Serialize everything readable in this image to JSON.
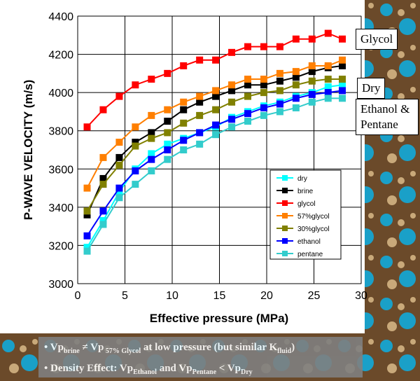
{
  "colors": {
    "bg_base": "#6b4a2a",
    "bg_speck": "#1aa0c8",
    "bg_light": "#c9a97a",
    "notes_bg": "#7f7f7f"
  },
  "chart_data": {
    "type": "line",
    "xlabel": "Effective pressure (MPa)",
    "ylabel": "P-WAVE VELOCITY (m/s)",
    "xlim": [
      0,
      30
    ],
    "ylim": [
      3000,
      4400
    ],
    "xticks": [
      "0",
      "5",
      "10",
      "15",
      "20",
      "25",
      "30"
    ],
    "yticks": [
      "3000",
      "3200",
      "3400",
      "3600",
      "3800",
      "4000",
      "4200",
      "4400"
    ],
    "grid": true,
    "legend_position": "lower-right inside plot",
    "x": [
      1,
      2.7,
      4.4,
      6.1,
      7.8,
      9.5,
      11.2,
      12.9,
      14.6,
      16.3,
      18,
      19.7,
      21.4,
      23.1,
      24.8,
      26.5,
      28
    ],
    "series": [
      {
        "name": "dry",
        "color": "#00ffff",
        "marker": "square",
        "values": [
          3190,
          3330,
          3480,
          3600,
          3680,
          3730,
          3760,
          3790,
          3820,
          3870,
          3900,
          3930,
          3950,
          3980,
          4000,
          4030,
          4040
        ]
      },
      {
        "name": "brine",
        "color": "#000000",
        "marker": "square",
        "values": [
          3360,
          3550,
          3660,
          3740,
          3790,
          3850,
          3910,
          3950,
          3980,
          4010,
          4040,
          4040,
          4060,
          4080,
          4110,
          4130,
          4140
        ]
      },
      {
        "name": "glycol",
        "color": "#ff0000",
        "marker": "square",
        "values": [
          3820,
          3910,
          3980,
          4040,
          4070,
          4100,
          4140,
          4170,
          4170,
          4210,
          4240,
          4240,
          4240,
          4280,
          4280,
          4310,
          4280
        ]
      },
      {
        "name": "57%glycol",
        "color": "#ff7f00",
        "marker": "square",
        "values": [
          3500,
          3660,
          3740,
          3820,
          3880,
          3910,
          3950,
          3980,
          4010,
          4040,
          4070,
          4070,
          4100,
          4110,
          4140,
          4140,
          4170
        ]
      },
      {
        "name": "30%glycol",
        "color": "#808000",
        "marker": "square",
        "values": [
          3380,
          3520,
          3620,
          3720,
          3760,
          3790,
          3840,
          3880,
          3910,
          3950,
          3980,
          4000,
          4010,
          4040,
          4060,
          4070,
          4070
        ]
      },
      {
        "name": "ethanol",
        "color": "#0000ff",
        "marker": "square",
        "values": [
          3250,
          3380,
          3500,
          3590,
          3650,
          3700,
          3750,
          3790,
          3830,
          3860,
          3890,
          3920,
          3940,
          3970,
          3990,
          4000,
          4010
        ]
      },
      {
        "name": "pentane",
        "color": "#33cccc",
        "marker": "square",
        "values": [
          3170,
          3310,
          3450,
          3520,
          3590,
          3650,
          3700,
          3730,
          3780,
          3820,
          3850,
          3880,
          3900,
          3920,
          3950,
          3970,
          3970
        ]
      }
    ]
  },
  "callouts": {
    "glycol": "Glycol",
    "dry": "Dry",
    "ethanol_pentane": "Ethanol & Pentane"
  },
  "notes": {
    "line1": {
      "bullet": "•",
      "vp1": "Vp",
      "sub1": "brine",
      "neq": " ≠ Vp",
      "sub2": " 57% Glycol",
      "rest": " at low pressure (but similar K",
      "sub3": "fluid",
      "close": ")"
    },
    "line2": {
      "bullet": "•",
      "pre": " Density Effect: Vp",
      "sub1": "Ethanol",
      "and": " and Vp",
      "sub2": "Pentane",
      "lt": " < Vp",
      "sub3": "Dry"
    }
  }
}
